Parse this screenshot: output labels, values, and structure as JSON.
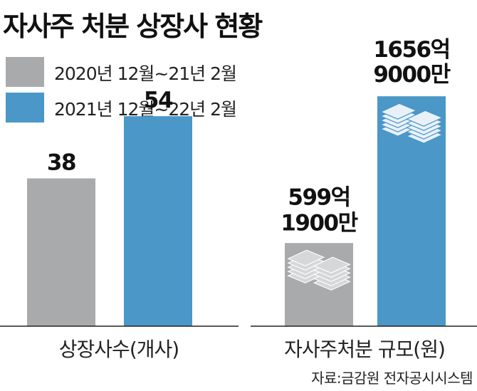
{
  "title": "자사주 처분 상장사 현황",
  "source": "자료:금감원 전자공시시스템",
  "colors": {
    "prev": "#a9aaac",
    "curr": "#4a97c8",
    "stack_light": "#e9f1f8",
    "stack_grey": "#d6d7d9"
  },
  "chart_data": [
    {
      "type": "bar",
      "title": "",
      "xlabel": "상장사수(개사)",
      "series": [
        {
          "name": "2020년 12월~21년 2월",
          "values": [
            38
          ],
          "labels": [
            "38"
          ]
        },
        {
          "name": "2021년 12월~22년 2월",
          "values": [
            54
          ],
          "labels": [
            "54"
          ]
        }
      ],
      "ylim": [
        0,
        76
      ]
    },
    {
      "type": "bar",
      "title": "",
      "xlabel": "자사주처분 규모(원)",
      "series": [
        {
          "name": "2020년 12월~21년 2월",
          "values": [
            59919000000
          ],
          "labels": [
            "599억",
            "1900만"
          ]
        },
        {
          "name": "2021년 12월~22년 2월",
          "values": [
            165690000000
          ],
          "labels": [
            "1656억",
            "9000만"
          ]
        }
      ],
      "ylim": [
        0,
        213000000000
      ]
    }
  ]
}
